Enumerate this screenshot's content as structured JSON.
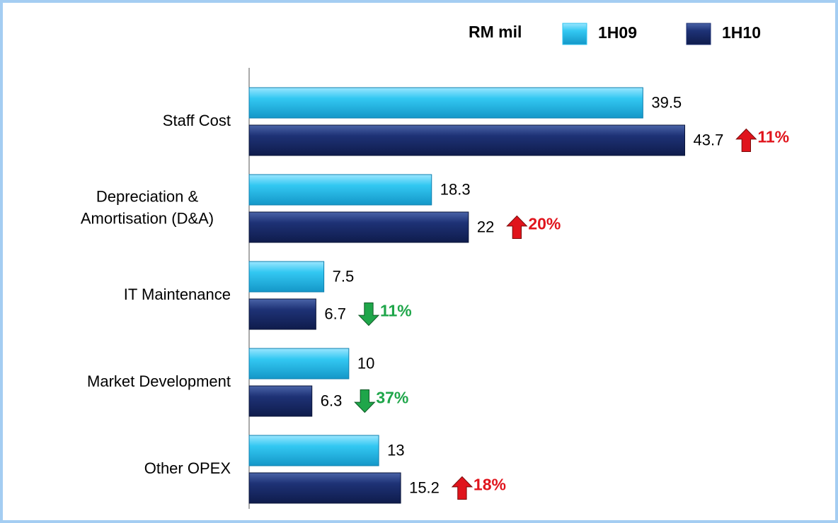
{
  "chart_data": {
    "type": "bar",
    "orientation": "horizontal",
    "legend_title": "RM mil",
    "categories": [
      "Staff Cost",
      [
        "Depreciation &",
        "Amortisation (D&A)"
      ],
      "IT Maintenance",
      "Market Development",
      "Other OPEX"
    ],
    "series": [
      {
        "name": "1H09",
        "color": "#2ec4f0",
        "values": [
          39.5,
          18.3,
          7.5,
          10,
          13
        ]
      },
      {
        "name": "1H10",
        "color": "#1c2f72",
        "values": [
          43.7,
          22,
          6.7,
          6.3,
          15.2
        ]
      }
    ],
    "changes": {
      "values": [
        11,
        20,
        -11,
        -37,
        18
      ],
      "value_labels": [
        "11%",
        "20%",
        "11%",
        "37%",
        "18%"
      ],
      "up_color": "#e0141c",
      "down_color": "#1fa64a"
    },
    "xlim": [
      0,
      59
    ]
  }
}
